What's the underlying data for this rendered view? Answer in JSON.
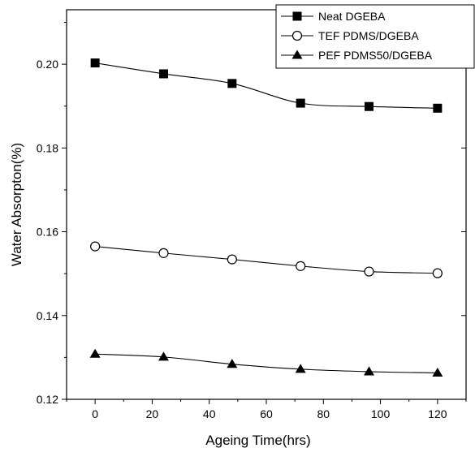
{
  "chart_data": {
    "type": "line",
    "title": "",
    "xlabel": "Ageing Time(hrs)",
    "ylabel": "Water Absorpton(%)",
    "xlim": [
      -10,
      130
    ],
    "ylim": [
      0.12,
      0.213
    ],
    "x_ticks": [
      0,
      20,
      40,
      60,
      80,
      100,
      120
    ],
    "x_tick_labels": [
      "0",
      "20",
      "40",
      "60",
      "80",
      "100",
      "120"
    ],
    "y_ticks": [
      0.12,
      0.14,
      0.16,
      0.18,
      0.2
    ],
    "y_tick_labels": [
      "0.12",
      "0.14",
      "0.16",
      "0.18",
      "0.20"
    ],
    "grid": false,
    "legend_position": "top-right",
    "x": [
      0,
      24,
      48,
      72,
      96,
      120
    ],
    "series": [
      {
        "name": "Neat DGEBA",
        "marker": "filled-square",
        "values": [
          0.2003,
          0.1977,
          0.1954,
          0.1907,
          0.1899,
          0.1895
        ]
      },
      {
        "name": "TEF PDMS/DGEBA",
        "marker": "open-circle",
        "values": [
          0.1565,
          0.1549,
          0.1534,
          0.1518,
          0.1505,
          0.1501
        ]
      },
      {
        "name": "PEF PDMS50/DGEBA",
        "marker": "filled-triangle",
        "values": [
          0.1308,
          0.1301,
          0.1284,
          0.1272,
          0.1266,
          0.1263
        ]
      }
    ],
    "colors": {
      "line": "#000000",
      "background": "#ffffff"
    }
  }
}
